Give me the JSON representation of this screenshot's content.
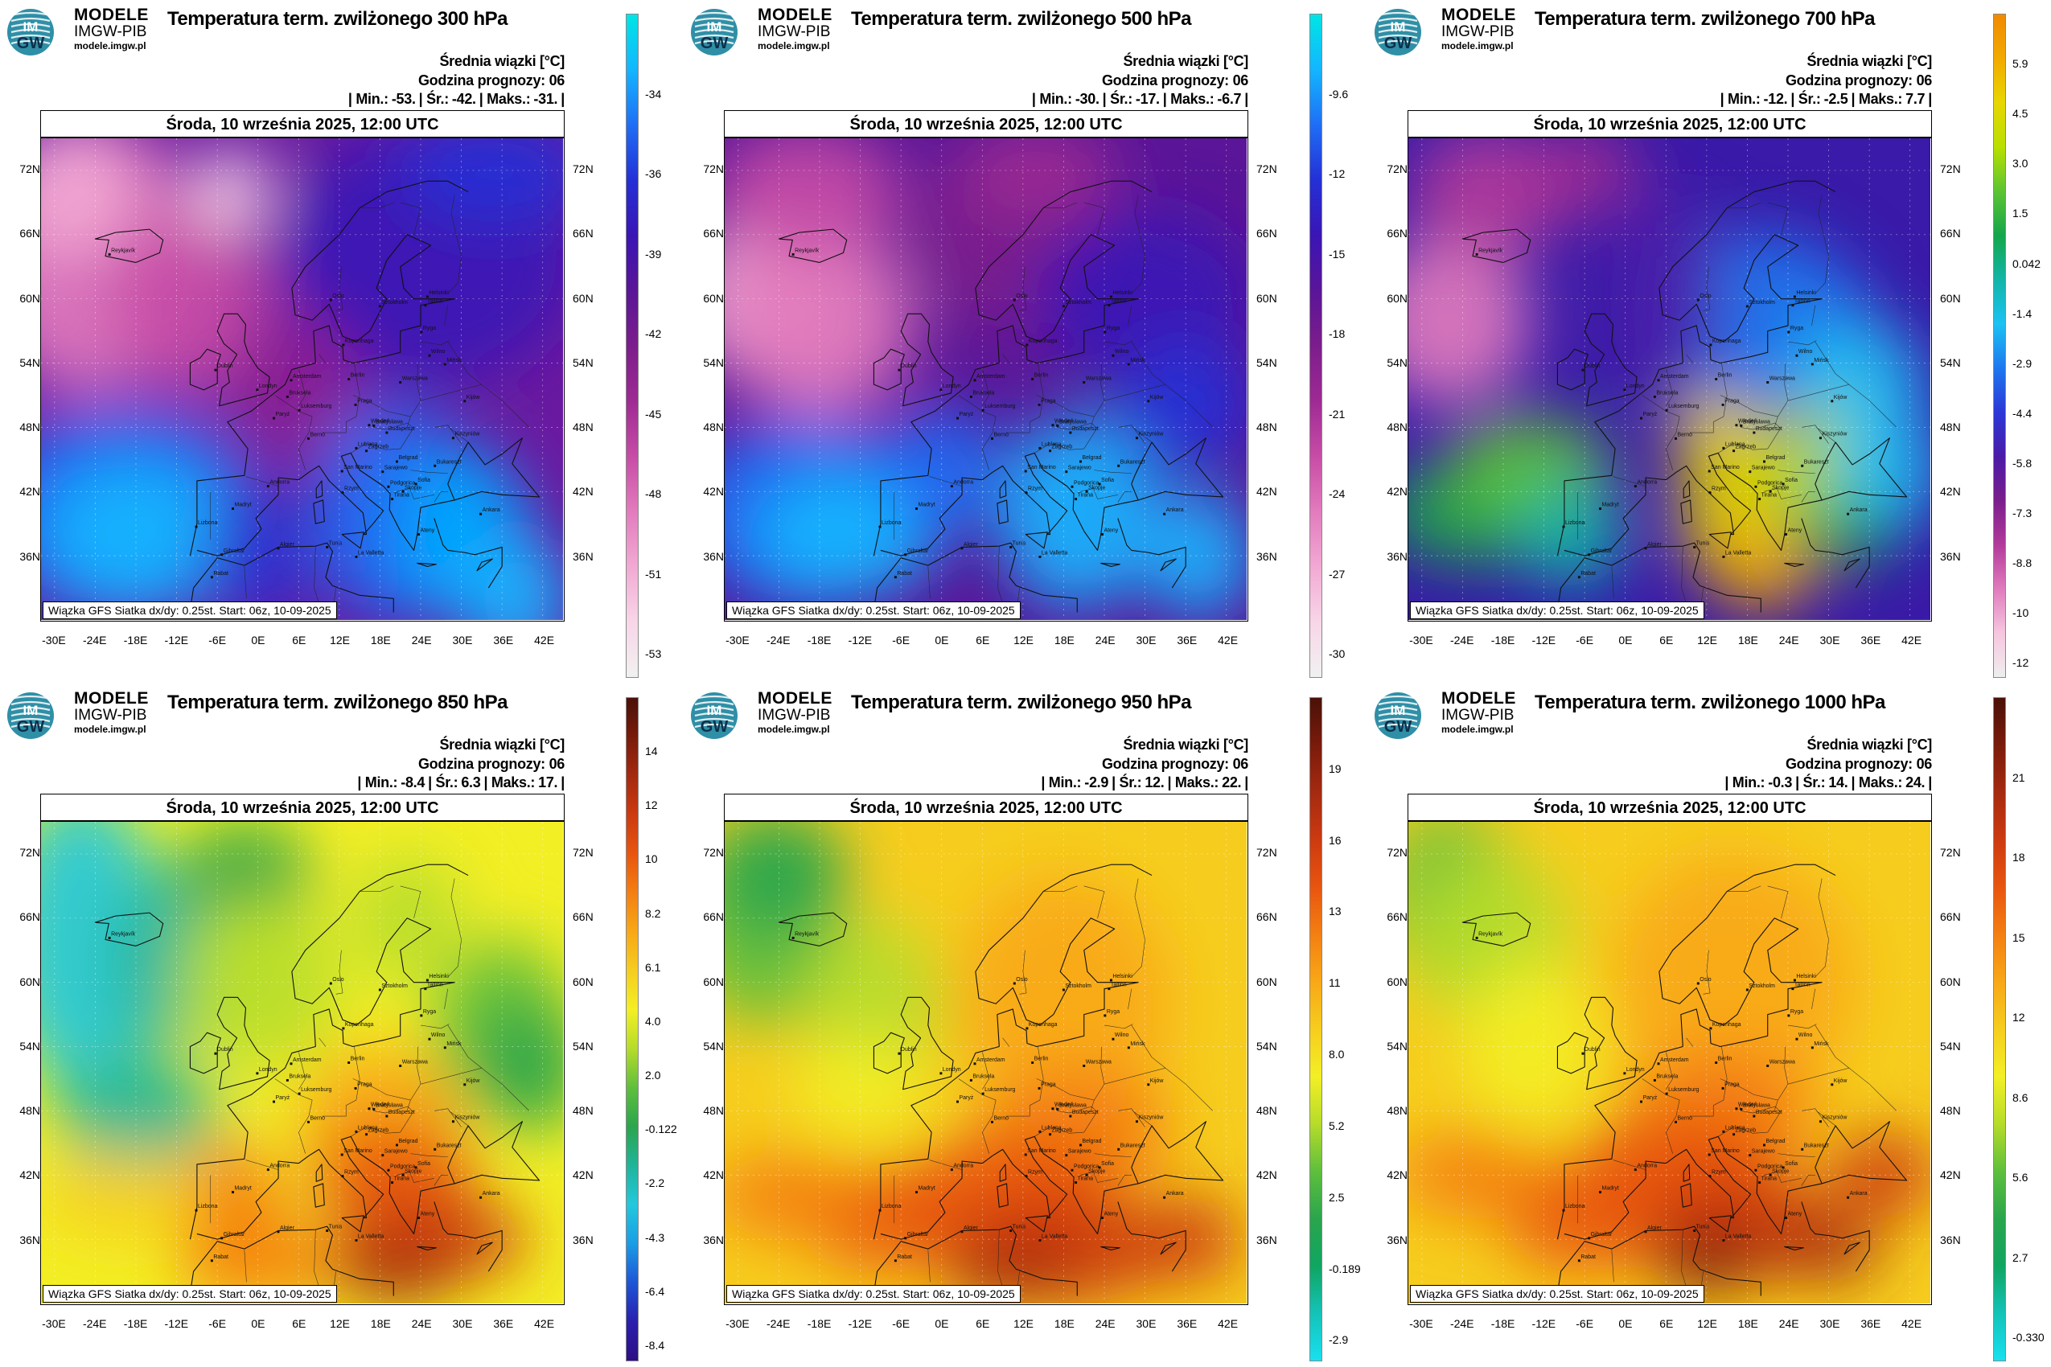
{
  "common": {
    "brand_line1": "MODELE",
    "brand_line2": "IMGW-PIB",
    "brand_line3": "modele.imgw.pl",
    "logo_text_top": "IM",
    "logo_text_bottom": "GW",
    "subtitle": "Średnia wiązki [°C]",
    "forecast_hour": "Godzina prognozy: 06",
    "date": "Środa, 10 września 2025, 12:00 UTC",
    "footer": "Wiązka GFS Siatka dx/dy: 0.25st. Start: 06z, 10-09-2025",
    "lat_labels": [
      "72N",
      "66N",
      "60N",
      "54N",
      "48N",
      "42N",
      "36N"
    ],
    "lon_labels": [
      "-30E",
      "-24E",
      "-18E",
      "-12E",
      "-6E",
      "0E",
      "6E",
      "12E",
      "18E",
      "24E",
      "30E",
      "36E",
      "42E"
    ],
    "city_labels": [
      "Warszawa",
      "Berlin",
      "Praga",
      "Budapeszt",
      "Wiedeń",
      "Rzym",
      "Madryt",
      "Lizbona",
      "Paryż",
      "Londyn",
      "Oslo",
      "Helsinki",
      "Sztokholm",
      "Tallinn",
      "Ryga",
      "Wilno",
      "Mińsk",
      "Kijów",
      "Bukareszt",
      "Sofia",
      "Ankara",
      "Tunis",
      "Algier",
      "Rabat",
      "Gibraltar",
      "Andorra",
      "San Marino",
      "La Valletta",
      "Amsterdam",
      "Bruksela",
      "Kopenhaga",
      "Belgrad",
      "Skopje",
      "Ateny",
      "Kiszyniów",
      "Zagrzeb",
      "Sarajewo",
      "Tirana",
      "Luksemburg",
      "Bratysława",
      "Berno",
      "Lublana",
      "Podgorica",
      "Dublin",
      "Reykjavík"
    ]
  },
  "panels": [
    {
      "title": "Temperatura term. zwilżonego 300 hPa",
      "stats": [
        "| Min.:",
        "-53.",
        "| Śr.:",
        "-42.",
        "| Maks.:",
        "-31.",
        "|"
      ],
      "colorbar_ticks": [
        "-34",
        "-36",
        "-39",
        "-42",
        "-45",
        "-48",
        "-51",
        "-53"
      ],
      "palette": "cold",
      "field": "p300"
    },
    {
      "title": "Temperatura term. zwilżonego 500 hPa",
      "stats": [
        "| Min.:",
        "-30.",
        "| Śr.:",
        "-17.",
        "| Maks.:",
        "-6.7",
        "|"
      ],
      "colorbar_ticks": [
        "-9.6",
        "-12",
        "-15",
        "-18",
        "-21",
        "-24",
        "-27",
        "-30"
      ],
      "palette": "cold",
      "field": "p500"
    },
    {
      "title": "Temperatura term. zwilżonego 700 hPa",
      "stats": [
        "| Min.:",
        "-12.",
        "| Śr.:",
        "-2.5",
        "| Maks.:",
        "7.7",
        "|"
      ],
      "colorbar_ticks": [
        "5.9",
        "4.5",
        "3.0",
        "1.5",
        "0.042",
        "-1.4",
        "-2.9",
        "-4.4",
        "-5.8",
        "-7.3",
        "-8.8",
        "-10",
        "-12"
      ],
      "palette": "mid",
      "field": "p700"
    },
    {
      "title": "Temperatura term. zwilżonego 850 hPa",
      "stats": [
        "| Min.:",
        "-8.4",
        "| Śr.:",
        "6.3",
        "| Maks.:",
        "17.",
        "|"
      ],
      "colorbar_ticks": [
        "14",
        "12",
        "10",
        "8.2",
        "6.1",
        "4.0",
        "2.0",
        "-0.122",
        "-2.2",
        "-4.3",
        "-6.4",
        "-8.4"
      ],
      "palette": "warm850",
      "field": "p850"
    },
    {
      "title": "Temperatura term. zwilżonego 950 hPa",
      "stats": [
        "| Min.:",
        "-2.9",
        "| Śr.:",
        "12.",
        "| Maks.:",
        "22.",
        "|"
      ],
      "colorbar_ticks": [
        "19",
        "16",
        "13",
        "11",
        "8.0",
        "5.2",
        "2.5",
        "-0.189",
        "-2.9"
      ],
      "palette": "warm",
      "field": "p950"
    },
    {
      "title": "Temperatura term. zwilżonego 1000 hPa",
      "stats": [
        "| Min.:",
        "-0.3",
        "| Śr.:",
        "14.",
        "| Maks.:",
        "24.",
        "|"
      ],
      "colorbar_ticks": [
        "21",
        "18",
        "15",
        "12",
        "8.6",
        "5.6",
        "2.7",
        "-0.330"
      ],
      "palette": "warm",
      "field": "p1000"
    }
  ]
}
